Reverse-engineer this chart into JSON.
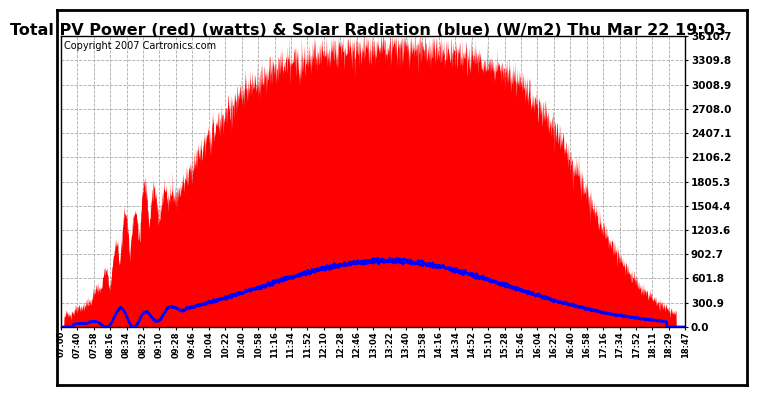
{
  "title": "Total PV Power (red) (watts) & Solar Radiation (blue) (W/m2) Thu Mar 22 19:03",
  "copyright": "Copyright 2007 Cartronics.com",
  "ymin": 0.0,
  "ymax": 3610.7,
  "ytick_values": [
    0.0,
    300.9,
    601.8,
    902.7,
    1203.6,
    1504.4,
    1805.3,
    2106.2,
    2407.1,
    2708.0,
    3008.9,
    3309.8,
    3610.7
  ],
  "bg_color": "#ffffff",
  "plot_bg_color": "#ffffff",
  "grid_color": "#aaaaaa",
  "red_fill_color": "#ff0000",
  "blue_line_color": "#0000ff",
  "title_fontsize": 11.5,
  "copyright_fontsize": 7,
  "xtick_labels": [
    "07:00",
    "07:40",
    "07:58",
    "08:16",
    "08:34",
    "08:52",
    "09:10",
    "09:28",
    "09:46",
    "10:04",
    "10:22",
    "10:40",
    "10:58",
    "11:16",
    "11:34",
    "11:52",
    "12:10",
    "12:28",
    "12:46",
    "13:04",
    "13:22",
    "13:40",
    "13:58",
    "14:16",
    "14:34",
    "14:52",
    "15:10",
    "15:28",
    "15:46",
    "16:04",
    "16:22",
    "16:40",
    "16:58",
    "17:16",
    "17:34",
    "17:52",
    "18:11",
    "18:29",
    "18:47"
  ],
  "pv_peak": 3500.0,
  "sol_peak": 820.0
}
